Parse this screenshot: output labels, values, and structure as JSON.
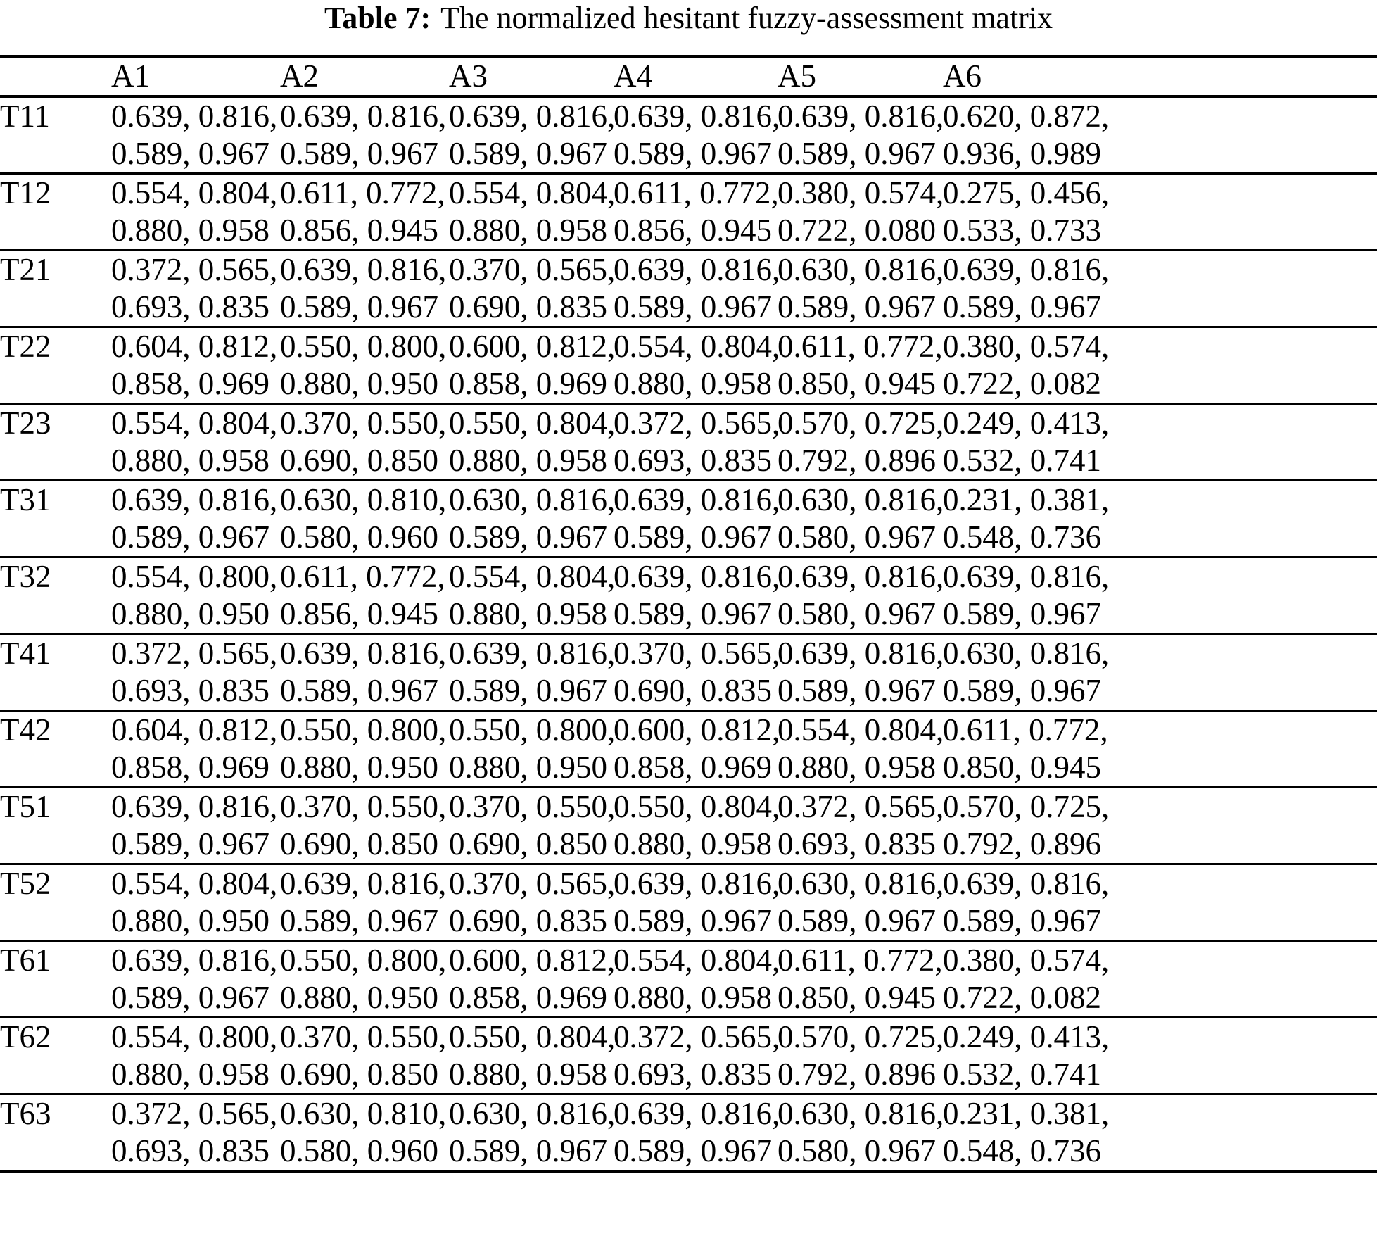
{
  "page": {
    "background": "#ffffff",
    "text_color": "#000000"
  },
  "caption": {
    "label": "Table 7:",
    "text": "The normalized hesitant fuzzy-assessment matrix"
  },
  "table": {
    "corner_header": "",
    "columns": [
      "A1",
      "A2",
      "A3",
      "A4",
      "A5",
      "A6"
    ],
    "rows": [
      {
        "label": "T11",
        "cells": [
          [
            "0.639, 0.816,",
            "0.589, 0.967"
          ],
          [
            "0.639, 0.816,",
            "0.589, 0.967"
          ],
          [
            "0.639, 0.816,",
            "0.589, 0.967"
          ],
          [
            "0.639, 0.816,",
            "0.589, 0.967"
          ],
          [
            "0.639, 0.816,",
            "0.589, 0.967"
          ],
          [
            "0.620, 0.872,",
            "0.936, 0.989"
          ]
        ]
      },
      {
        "label": "T12",
        "cells": [
          [
            "0.554, 0.804,",
            "0.880, 0.958"
          ],
          [
            "0.611, 0.772,",
            "0.856, 0.945"
          ],
          [
            "0.554, 0.804,",
            "0.880, 0.958"
          ],
          [
            "0.611, 0.772,",
            "0.856, 0.945"
          ],
          [
            "0.380, 0.574,",
            "0.722, 0.080"
          ],
          [
            "0.275, 0.456,",
            "0.533, 0.733"
          ]
        ]
      },
      {
        "label": "T21",
        "cells": [
          [
            "0.372, 0.565,",
            "0.693, 0.835"
          ],
          [
            "0.639, 0.816,",
            "0.589, 0.967"
          ],
          [
            "0.370, 0.565,",
            "0.690, 0.835"
          ],
          [
            "0.639, 0.816,",
            "0.589, 0.967"
          ],
          [
            "0.630, 0.816,",
            "0.589, 0.967"
          ],
          [
            "0.639, 0.816,",
            "0.589, 0.967"
          ]
        ]
      },
      {
        "label": "T22",
        "cells": [
          [
            "0.604, 0.812,",
            "0.858, 0.969"
          ],
          [
            "0.550, 0.800,",
            "0.880, 0.950"
          ],
          [
            "0.600, 0.812,",
            "0.858, 0.969"
          ],
          [
            "0.554, 0.804,",
            "0.880, 0.958"
          ],
          [
            "0.611, 0.772,",
            "0.850, 0.945"
          ],
          [
            "0.380, 0.574,",
            "0.722, 0.082"
          ]
        ]
      },
      {
        "label": "T23",
        "cells": [
          [
            "0.554, 0.804,",
            "0.880, 0.958"
          ],
          [
            "0.370, 0.550,",
            "0.690, 0.850"
          ],
          [
            "0.550, 0.804,",
            "0.880, 0.958"
          ],
          [
            "0.372, 0.565,",
            "0.693, 0.835"
          ],
          [
            "0.570, 0.725,",
            "0.792, 0.896"
          ],
          [
            "0.249, 0.413,",
            "0.532, 0.741"
          ]
        ]
      },
      {
        "label": "T31",
        "cells": [
          [
            "0.639, 0.816,",
            "0.589, 0.967"
          ],
          [
            "0.630, 0.810,",
            "0.580, 0.960"
          ],
          [
            "0.630, 0.816,",
            "0.589, 0.967"
          ],
          [
            "0.639, 0.816,",
            "0.589, 0.967"
          ],
          [
            "0.630, 0.816,",
            "0.580, 0.967"
          ],
          [
            "0.231, 0.381,",
            "0.548, 0.736"
          ]
        ]
      },
      {
        "label": "T32",
        "cells": [
          [
            "0.554, 0.800,",
            "0.880, 0.950"
          ],
          [
            "0.611, 0.772,",
            "0.856, 0.945"
          ],
          [
            "0.554, 0.804,",
            "0.880, 0.958"
          ],
          [
            "0.639, 0.816,",
            "0.589, 0.967"
          ],
          [
            "0.639, 0.816,",
            "0.580, 0.967"
          ],
          [
            "0.639, 0.816,",
            "0.589, 0.967"
          ]
        ]
      },
      {
        "label": "T41",
        "cells": [
          [
            "0.372, 0.565,",
            "0.693, 0.835"
          ],
          [
            "0.639, 0.816,",
            "0.589, 0.967"
          ],
          [
            "0.639, 0.816,",
            "0.589, 0.967"
          ],
          [
            "0.370, 0.565,",
            "0.690, 0.835"
          ],
          [
            "0.639, 0.816,",
            "0.589, 0.967"
          ],
          [
            "0.630, 0.816,",
            "0.589, 0.967"
          ]
        ]
      },
      {
        "label": "T42",
        "cells": [
          [
            "0.604, 0.812,",
            "0.858, 0.969"
          ],
          [
            "0.550, 0.800,",
            "0.880, 0.950"
          ],
          [
            "0.550, 0.800,",
            "0.880, 0.950"
          ],
          [
            "0.600, 0.812,",
            "0.858, 0.969"
          ],
          [
            "0.554, 0.804,",
            "0.880, 0.958"
          ],
          [
            "0.611, 0.772,",
            "0.850, 0.945"
          ]
        ]
      },
      {
        "label": "T51",
        "cells": [
          [
            "0.639, 0.816,",
            "0.589, 0.967"
          ],
          [
            "0.370, 0.550,",
            "0.690, 0.850"
          ],
          [
            "0.370, 0.550,",
            "0.690, 0.850"
          ],
          [
            "0.550, 0.804,",
            "0.880, 0.958"
          ],
          [
            "0.372, 0.565,",
            "0.693, 0.835"
          ],
          [
            "0.570, 0.725,",
            "0.792, 0.896"
          ]
        ]
      },
      {
        "label": "T52",
        "cells": [
          [
            "0.554, 0.804,",
            "0.880, 0.950"
          ],
          [
            "0.639, 0.816,",
            "0.589, 0.967"
          ],
          [
            "0.370, 0.565,",
            "0.690, 0.835"
          ],
          [
            "0.639, 0.816,",
            "0.589, 0.967"
          ],
          [
            "0.630, 0.816,",
            "0.589, 0.967"
          ],
          [
            "0.639, 0.816,",
            "0.589, 0.967"
          ]
        ]
      },
      {
        "label": "T61",
        "cells": [
          [
            "0.639, 0.816,",
            "0.589, 0.967"
          ],
          [
            "0.550, 0.800,",
            "0.880, 0.950"
          ],
          [
            "0.600, 0.812,",
            "0.858, 0.969"
          ],
          [
            "0.554, 0.804,",
            "0.880, 0.958"
          ],
          [
            "0.611, 0.772,",
            "0.850, 0.945"
          ],
          [
            "0.380, 0.574,",
            "0.722, 0.082"
          ]
        ]
      },
      {
        "label": "T62",
        "cells": [
          [
            "0.554, 0.800,",
            "0.880, 0.958"
          ],
          [
            "0.370, 0.550,",
            "0.690, 0.850"
          ],
          [
            "0.550, 0.804,",
            "0.880, 0.958"
          ],
          [
            "0.372, 0.565,",
            "0.693, 0.835"
          ],
          [
            "0.570, 0.725,",
            "0.792, 0.896"
          ],
          [
            "0.249, 0.413,",
            "0.532, 0.741"
          ]
        ]
      },
      {
        "label": "T63",
        "cells": [
          [
            "0.372, 0.565,",
            "0.693, 0.835"
          ],
          [
            "0.630, 0.810,",
            "0.580, 0.960"
          ],
          [
            "0.630, 0.816,",
            "0.589, 0.967"
          ],
          [
            "0.639, 0.816,",
            "0.589, 0.967"
          ],
          [
            "0.630, 0.816,",
            "0.580, 0.967"
          ],
          [
            "0.231, 0.381,",
            "0.548, 0.736"
          ]
        ]
      }
    ]
  }
}
